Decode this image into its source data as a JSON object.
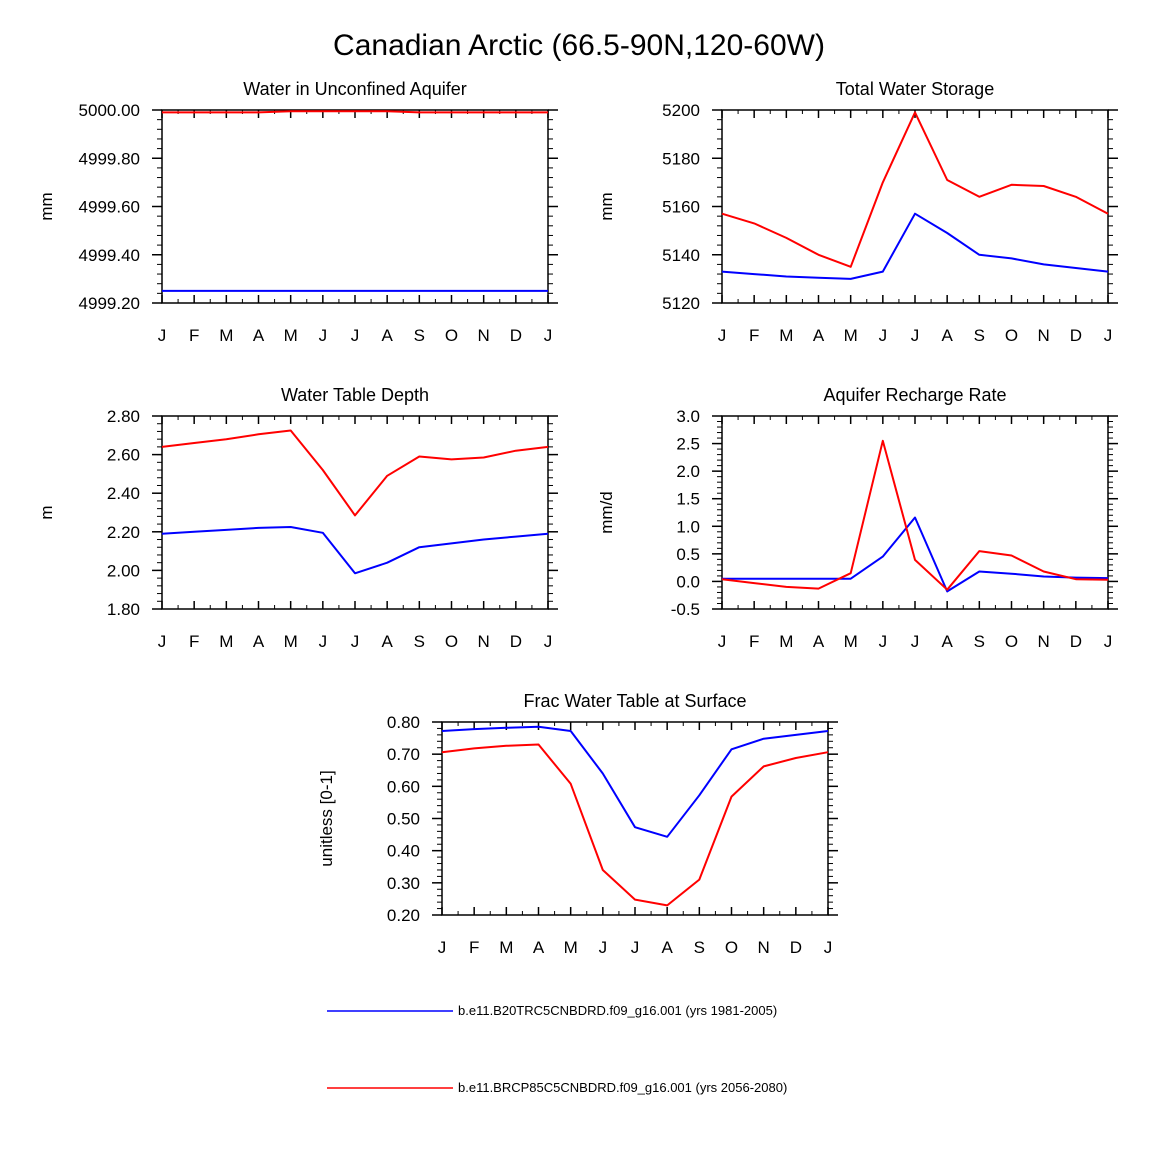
{
  "figure_title": "Canadian Arctic (66.5-90N,120-60W)",
  "legend": [
    {
      "label": "b.e11.B20TRC5CNBDRD.f09_g16.001 (yrs 1981-2005)",
      "color": "#0000ff"
    },
    {
      "label": "b.e11.BRCP85C5CNBDRD.f09_g16.001 (yrs 2056-2080)",
      "color": "#ff0000"
    }
  ],
  "chart_data": [
    {
      "type": "line",
      "title": "Water in Unconfined Aquifer",
      "ylabel": "mm",
      "x": [
        "J",
        "F",
        "M",
        "A",
        "M",
        "J",
        "J",
        "A",
        "S",
        "O",
        "N",
        "D",
        "J"
      ],
      "ylim": [
        4999.2,
        5000.0
      ],
      "yticks": [
        4999.2,
        4999.4,
        4999.6,
        4999.8,
        5000.0
      ],
      "ytick_labels": [
        "4999.20",
        "4999.40",
        "4999.60",
        "4999.80",
        "5000.00"
      ],
      "series": [
        {
          "color": "#0000ff",
          "values": [
            4999.25,
            4999.25,
            4999.25,
            4999.25,
            4999.25,
            4999.25,
            4999.25,
            4999.25,
            4999.25,
            4999.25,
            4999.25,
            4999.25,
            4999.25
          ]
        },
        {
          "color": "#ff0000",
          "values": [
            4999.99,
            4999.99,
            4999.99,
            4999.99,
            4999.995,
            4999.995,
            4999.995,
            4999.995,
            4999.99,
            4999.99,
            4999.99,
            4999.99,
            4999.99
          ]
        }
      ]
    },
    {
      "type": "line",
      "title": "Total Water Storage",
      "ylabel": "mm",
      "x": [
        "J",
        "F",
        "M",
        "A",
        "M",
        "J",
        "J",
        "A",
        "S",
        "O",
        "N",
        "D",
        "J"
      ],
      "ylim": [
        5120,
        5200
      ],
      "yticks": [
        5120,
        5140,
        5160,
        5180,
        5200
      ],
      "ytick_labels": [
        "5120",
        "5140",
        "5160",
        "5180",
        "5200"
      ],
      "series": [
        {
          "color": "#0000ff",
          "values": [
            5133,
            5132,
            5131,
            5130.5,
            5130,
            5133,
            5157,
            5149,
            5140,
            5138.5,
            5136,
            5134.5,
            5133
          ]
        },
        {
          "color": "#ff0000",
          "values": [
            5157,
            5153,
            5147,
            5140,
            5135,
            5170,
            5199,
            5171,
            5164,
            5169,
            5168.5,
            5164,
            5157
          ]
        }
      ]
    },
    {
      "type": "line",
      "title": "Water Table Depth",
      "ylabel": "m",
      "x": [
        "J",
        "F",
        "M",
        "A",
        "M",
        "J",
        "J",
        "A",
        "S",
        "O",
        "N",
        "D",
        "J"
      ],
      "ylim": [
        1.8,
        2.8
      ],
      "yticks": [
        1.8,
        2.0,
        2.2,
        2.4,
        2.6,
        2.8
      ],
      "ytick_labels": [
        "1.80",
        "2.00",
        "2.20",
        "2.40",
        "2.60",
        "2.80"
      ],
      "series": [
        {
          "color": "#0000ff",
          "values": [
            2.19,
            2.2,
            2.21,
            2.22,
            2.225,
            2.195,
            1.985,
            2.04,
            2.12,
            2.14,
            2.16,
            2.175,
            2.19
          ]
        },
        {
          "color": "#ff0000",
          "values": [
            2.64,
            2.66,
            2.68,
            2.705,
            2.725,
            2.52,
            2.285,
            2.49,
            2.59,
            2.575,
            2.585,
            2.62,
            2.64
          ]
        }
      ]
    },
    {
      "type": "line",
      "title": "Aquifer Recharge Rate",
      "ylabel": "mm/d",
      "x": [
        "J",
        "F",
        "M",
        "A",
        "M",
        "J",
        "J",
        "A",
        "S",
        "O",
        "N",
        "D",
        "J"
      ],
      "ylim": [
        -0.5,
        3.0
      ],
      "yticks": [
        -0.5,
        0.0,
        0.5,
        1.0,
        1.5,
        2.0,
        2.5,
        3.0
      ],
      "ytick_labels": [
        "-0.5",
        "0.0",
        "0.5",
        "1.0",
        "1.5",
        "2.0",
        "2.5",
        "3.0"
      ],
      "series": [
        {
          "color": "#0000ff",
          "values": [
            0.05,
            0.05,
            0.05,
            0.05,
            0.05,
            0.45,
            1.16,
            -0.18,
            0.18,
            0.14,
            0.09,
            0.07,
            0.06
          ]
        },
        {
          "color": "#ff0000",
          "values": [
            0.04,
            -0.03,
            -0.1,
            -0.13,
            0.15,
            2.55,
            0.39,
            -0.15,
            0.55,
            0.47,
            0.18,
            0.04,
            0.03
          ]
        }
      ]
    },
    {
      "type": "line",
      "title": "Frac Water Table at Surface",
      "ylabel": "unitless [0-1]",
      "x": [
        "J",
        "F",
        "M",
        "A",
        "M",
        "J",
        "J",
        "A",
        "S",
        "O",
        "N",
        "D",
        "J"
      ],
      "ylim": [
        0.2,
        0.8
      ],
      "yticks": [
        0.2,
        0.3,
        0.4,
        0.5,
        0.6,
        0.7,
        0.8
      ],
      "ytick_labels": [
        "0.20",
        "0.30",
        "0.40",
        "0.50",
        "0.60",
        "0.70",
        "0.80"
      ],
      "series": [
        {
          "color": "#0000ff",
          "values": [
            0.772,
            0.778,
            0.782,
            0.785,
            0.772,
            0.64,
            0.473,
            0.443,
            0.572,
            0.715,
            0.748,
            0.76,
            0.772
          ]
        },
        {
          "color": "#ff0000",
          "values": [
            0.706,
            0.718,
            0.726,
            0.73,
            0.608,
            0.34,
            0.248,
            0.23,
            0.31,
            0.568,
            0.662,
            0.688,
            0.706
          ]
        }
      ]
    }
  ]
}
